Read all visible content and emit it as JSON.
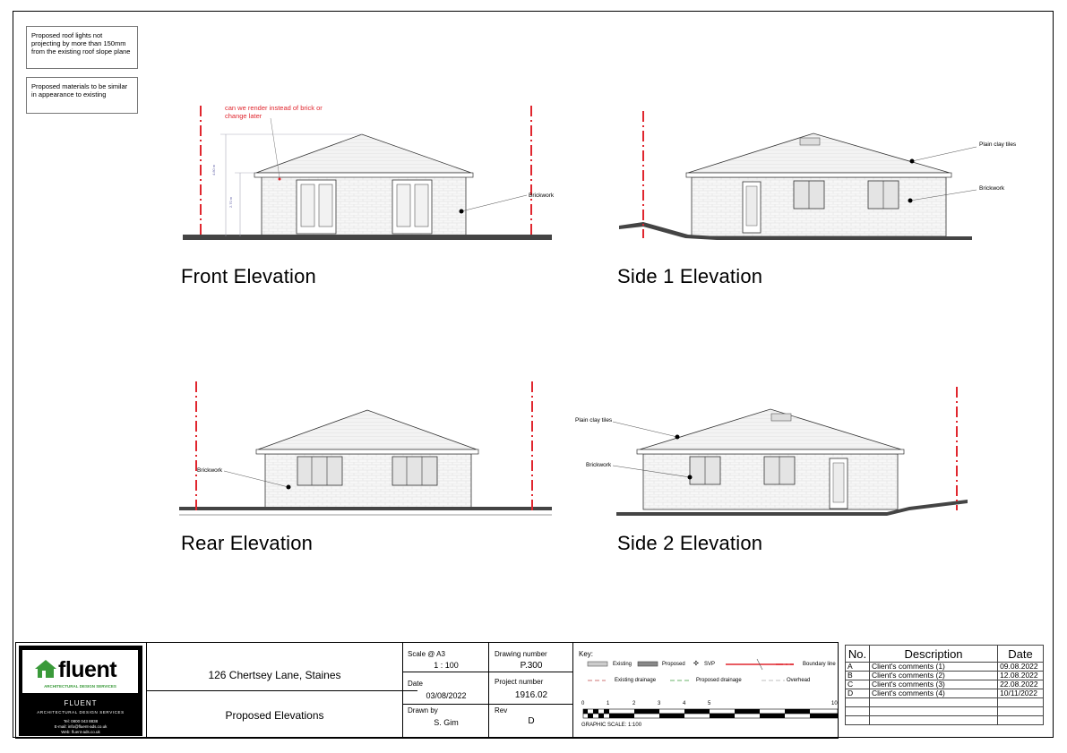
{
  "notes": {
    "roof_lights": "Proposed roof lights not projecting by more than 150mm from the existing roof slope plane",
    "materials": "Proposed materials to be similar in appearance to existing"
  },
  "elevations": {
    "front": {
      "title": "Front Elevation",
      "comment": "can we render instead of brick or change later",
      "label_brick": "Brickwork",
      "dim_overall": "4.80 m",
      "dim_eaves": "2.70 m"
    },
    "side1": {
      "title": "Side 1 Elevation",
      "label_roof": "Plain clay tiles",
      "label_brick": "Brickwork"
    },
    "rear": {
      "title": "Rear Elevation",
      "label_brick": "Brickwork"
    },
    "side2": {
      "title": "Side 2 Elevation",
      "label_roof": "Plain clay tiles",
      "label_brick": "Brickwork"
    }
  },
  "colors": {
    "boundary": "#e0262e",
    "comment": "#e0262e",
    "brick": "#f7f7f7",
    "line": "#333333"
  },
  "titleblock": {
    "logo": {
      "brand": "fluent",
      "tagline": "ARCHITECTURAL DESIGN SERVICES",
      "company": "FLUENT",
      "subtitle": "ARCHITECTURAL DESIGN SERVICES",
      "tel": "Tel: 0800 043 8838",
      "email": "E-mail: info@fluent-ads.co.uk",
      "web": "Web: fluent-ads.co.uk"
    },
    "address": "126 Chertsey Lane, Staines",
    "sheet_title": "Proposed Elevations",
    "scale_label": "Scale @ A3",
    "scale": "1 : 100",
    "date_label": "Date",
    "date": "03/08/2022",
    "drawn_label": "Drawn by",
    "drawn": "S. Gim",
    "drawing_no_label": "Drawing number",
    "drawing_no": "P.300",
    "project_no_label": "Project number",
    "project_no": "1916.02",
    "rev_label": "Rev",
    "rev": "D"
  },
  "key": {
    "title": "Key:",
    "existing": "Existing",
    "proposed": "Proposed",
    "svp": "SVP",
    "boundary": "Boundary line",
    "existing_drainage": "Existing drainage",
    "proposed_drainage": "Proposed drainage",
    "overhead": "Overhead",
    "scale_ticks": [
      "0",
      "1",
      "2",
      "3",
      "4",
      "5",
      "10"
    ],
    "scale_caption": "GRAPHIC SCALE: 1:100"
  },
  "revisions": {
    "headers": [
      "No.",
      "Description",
      "Date"
    ],
    "rows": [
      {
        "no": "A",
        "desc": "Client's comments (1)",
        "date": "09.08.2022"
      },
      {
        "no": "B",
        "desc": "Client's comments (2)",
        "date": "12.08.2022"
      },
      {
        "no": "C",
        "desc": "Client's comments (3)",
        "date": "22.08.2022"
      },
      {
        "no": "D",
        "desc": "Client's comments (4)",
        "date": "10/11/2022"
      },
      {
        "no": "",
        "desc": "",
        "date": ""
      },
      {
        "no": "",
        "desc": "",
        "date": ""
      },
      {
        "no": "",
        "desc": "",
        "date": ""
      }
    ]
  }
}
